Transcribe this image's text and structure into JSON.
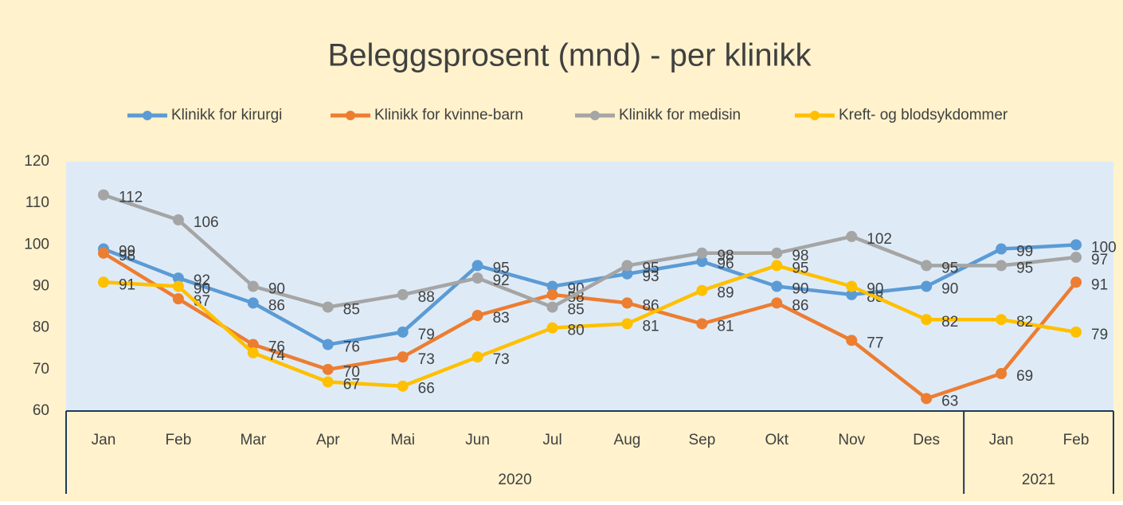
{
  "chart_data": {
    "type": "line",
    "title": "Beleggsprosent (mnd) - per klinikk",
    "categories": [
      "Jan",
      "Feb",
      "Mar",
      "Apr",
      "Mai",
      "Jun",
      "Jul",
      "Aug",
      "Sep",
      "Okt",
      "Nov",
      "Des",
      "Jan",
      "Feb"
    ],
    "groups": [
      {
        "label": "2020",
        "count": 12
      },
      {
        "label": "2021",
        "count": 2
      }
    ],
    "series": [
      {
        "name": "Klinikk for kirurgi",
        "color": "#5b9bd5",
        "values": [
          99,
          92,
          86,
          76,
          79,
          95,
          90,
          93,
          96,
          90,
          88,
          90,
          99,
          100
        ]
      },
      {
        "name": "Klinikk for kvinne-barn",
        "color": "#ed7d31",
        "values": [
          98,
          87,
          76,
          70,
          73,
          83,
          88,
          86,
          81,
          86,
          77,
          63,
          69,
          91
        ]
      },
      {
        "name": "Klinikk for medisin",
        "color": "#a5a5a5",
        "values": [
          112,
          106,
          90,
          85,
          88,
          92,
          85,
          95,
          98,
          98,
          102,
          95,
          95,
          97
        ]
      },
      {
        "name": "Kreft- og blodsykdommer",
        "color": "#ffc000",
        "values": [
          91,
          90,
          74,
          67,
          66,
          73,
          80,
          81,
          89,
          95,
          90,
          82,
          82,
          79
        ]
      }
    ],
    "ylim": [
      60,
      120
    ],
    "yticks": [
      60,
      70,
      80,
      90,
      100,
      110,
      120
    ],
    "legend": "top"
  }
}
